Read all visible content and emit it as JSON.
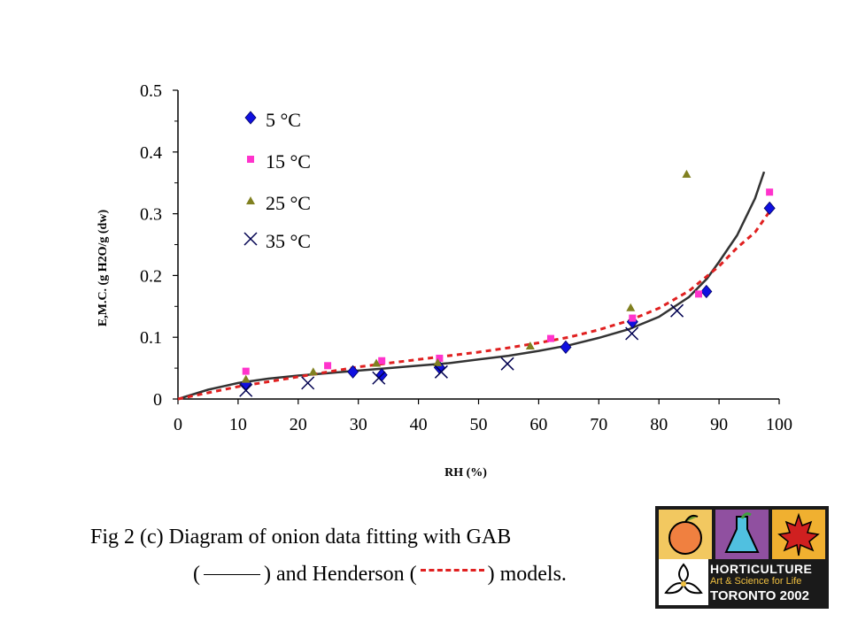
{
  "chart_data": {
    "type": "scatter",
    "xlabel": "RH (%)",
    "ylabel": "E,M.C. (g H2O/g (dw)",
    "xlim": [
      0,
      100
    ],
    "ylim": [
      0,
      0.5
    ],
    "xticks": [
      "0",
      "10",
      "20",
      "30",
      "40",
      "50",
      "60",
      "70",
      "80",
      "90",
      "100"
    ],
    "yticks": [
      "0",
      "0.1",
      "0.2",
      "0.3",
      "0.4",
      "0.5"
    ],
    "legend_position": "top-left",
    "series": [
      {
        "name": "5 °C",
        "marker": "diamond",
        "color": "#1010e0",
        "points": [
          [
            11.3,
            0.025
          ],
          [
            29.1,
            0.044
          ],
          [
            33.9,
            0.039
          ],
          [
            43.5,
            0.051
          ],
          [
            64.5,
            0.084
          ],
          [
            75.6,
            0.125
          ],
          [
            87.9,
            0.174
          ],
          [
            98.4,
            0.309
          ]
        ]
      },
      {
        "name": "15 °C",
        "marker": "square",
        "color": "#ff33cc",
        "points": [
          [
            11.3,
            0.045
          ],
          [
            24.9,
            0.054
          ],
          [
            33.9,
            0.062
          ],
          [
            43.5,
            0.066
          ],
          [
            62.0,
            0.098
          ],
          [
            75.6,
            0.131
          ],
          [
            86.6,
            0.17
          ],
          [
            98.4,
            0.335
          ]
        ]
      },
      {
        "name": "25 °C",
        "marker": "triangle",
        "color": "#808020",
        "points": [
          [
            11.3,
            0.032
          ],
          [
            22.5,
            0.044
          ],
          [
            33.0,
            0.058
          ],
          [
            43.2,
            0.059
          ],
          [
            58.6,
            0.086
          ],
          [
            75.3,
            0.148
          ],
          [
            84.6,
            0.364
          ]
        ]
      },
      {
        "name": "35 °C",
        "marker": "x",
        "color": "#000050",
        "points": [
          [
            11.3,
            0.014
          ],
          [
            21.6,
            0.026
          ],
          [
            33.4,
            0.034
          ],
          [
            43.8,
            0.044
          ],
          [
            54.8,
            0.057
          ],
          [
            75.5,
            0.106
          ],
          [
            83.0,
            0.143
          ]
        ]
      }
    ],
    "models": [
      {
        "name": "GAB",
        "style": "solid",
        "color": "#333333",
        "points": [
          [
            0,
            0
          ],
          [
            5,
            0.015
          ],
          [
            10,
            0.026
          ],
          [
            15,
            0.033
          ],
          [
            20,
            0.038
          ],
          [
            25,
            0.042
          ],
          [
            30,
            0.046
          ],
          [
            35,
            0.05
          ],
          [
            40,
            0.054
          ],
          [
            45,
            0.058
          ],
          [
            50,
            0.064
          ],
          [
            55,
            0.07
          ],
          [
            60,
            0.078
          ],
          [
            65,
            0.087
          ],
          [
            70,
            0.099
          ],
          [
            75,
            0.113
          ],
          [
            80,
            0.133
          ],
          [
            85,
            0.165
          ],
          [
            88,
            0.195
          ],
          [
            90,
            0.222
          ],
          [
            93,
            0.265
          ],
          [
            96,
            0.325
          ],
          [
            97.5,
            0.368
          ]
        ]
      },
      {
        "name": "Henderson",
        "style": "dashed",
        "color": "#e02020",
        "points": [
          [
            0,
            0
          ],
          [
            5,
            0.01
          ],
          [
            10,
            0.02
          ],
          [
            15,
            0.028
          ],
          [
            20,
            0.036
          ],
          [
            25,
            0.044
          ],
          [
            30,
            0.052
          ],
          [
            35,
            0.058
          ],
          [
            40,
            0.064
          ],
          [
            45,
            0.07
          ],
          [
            50,
            0.076
          ],
          [
            55,
            0.083
          ],
          [
            60,
            0.091
          ],
          [
            65,
            0.1
          ],
          [
            70,
            0.112
          ],
          [
            75,
            0.127
          ],
          [
            80,
            0.147
          ],
          [
            85,
            0.175
          ],
          [
            90,
            0.215
          ],
          [
            93,
            0.245
          ],
          [
            96,
            0.27
          ],
          [
            98.5,
            0.305
          ]
        ]
      }
    ]
  },
  "caption": {
    "line1": "Fig 2 (c) Diagram of onion data fitting with GAB",
    "line2_open": "(",
    "line2_mid": ") and Henderson (",
    "line2_end": ") models."
  },
  "logo": {
    "line1": "HORTICULTURE",
    "line2": "Art & Science for Life",
    "line3": "TORONTO 2002"
  },
  "colors": {
    "gab": "#333333",
    "henderson": "#e02020",
    "axis": "#000000",
    "logo_background": "#1a1a1a",
    "logo_accent": "#f0c040"
  }
}
